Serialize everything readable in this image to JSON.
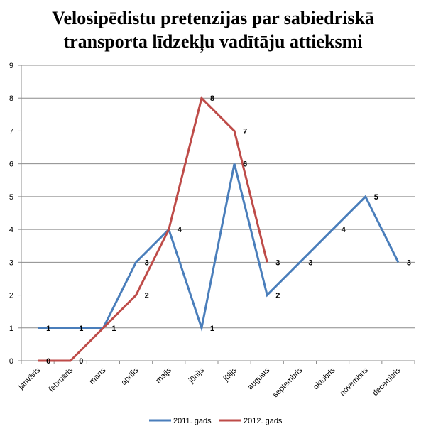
{
  "chart_data": {
    "type": "line",
    "title_line1": "Velosipēdistu pretenzijas par sabiedriskā",
    "title_line2": "transporta līdzekļu vadītāju attieksmi",
    "categories": [
      "janvāris",
      "februāris",
      "marts",
      "aprīlis",
      "maijs",
      "jūnijs",
      "jūlijs",
      "augusts",
      "septembris",
      "oktobris",
      "novembris",
      "decembris"
    ],
    "ylim": [
      0,
      9
    ],
    "yticks": [
      0,
      1,
      2,
      3,
      4,
      5,
      6,
      7,
      8,
      9
    ],
    "grid": true,
    "legend_position": "bottom",
    "series": [
      {
        "name": "2011. gads",
        "color": "#4a7ebb",
        "values": [
          1,
          1,
          1,
          3,
          4,
          1,
          6,
          2,
          3,
          4,
          5,
          3
        ]
      },
      {
        "name": "2012. gads",
        "color": "#be4b48",
        "values": [
          0,
          0,
          1,
          2,
          4,
          8,
          7,
          3,
          null,
          null,
          null,
          null
        ]
      }
    ],
    "data_labels": [
      {
        "series": 0,
        "index": 0,
        "text": "1"
      },
      {
        "series": 0,
        "index": 1,
        "text": "1"
      },
      {
        "series": 0,
        "index": 2,
        "text": "1"
      },
      {
        "series": 0,
        "index": 3,
        "text": "3"
      },
      {
        "series": 0,
        "index": 4,
        "text": "4"
      },
      {
        "series": 0,
        "index": 5,
        "text": "1"
      },
      {
        "series": 0,
        "index": 6,
        "text": "6"
      },
      {
        "series": 0,
        "index": 7,
        "text": "2"
      },
      {
        "series": 0,
        "index": 8,
        "text": "3"
      },
      {
        "series": 0,
        "index": 9,
        "text": "4"
      },
      {
        "series": 0,
        "index": 10,
        "text": "5"
      },
      {
        "series": 0,
        "index": 11,
        "text": "3"
      },
      {
        "series": 1,
        "index": 0,
        "text": "0"
      },
      {
        "series": 1,
        "index": 1,
        "text": "0"
      },
      {
        "series": 1,
        "index": 3,
        "text": "2"
      },
      {
        "series": 1,
        "index": 5,
        "text": "8"
      },
      {
        "series": 1,
        "index": 6,
        "text": "7"
      },
      {
        "series": 1,
        "index": 7,
        "text": "3"
      }
    ]
  }
}
